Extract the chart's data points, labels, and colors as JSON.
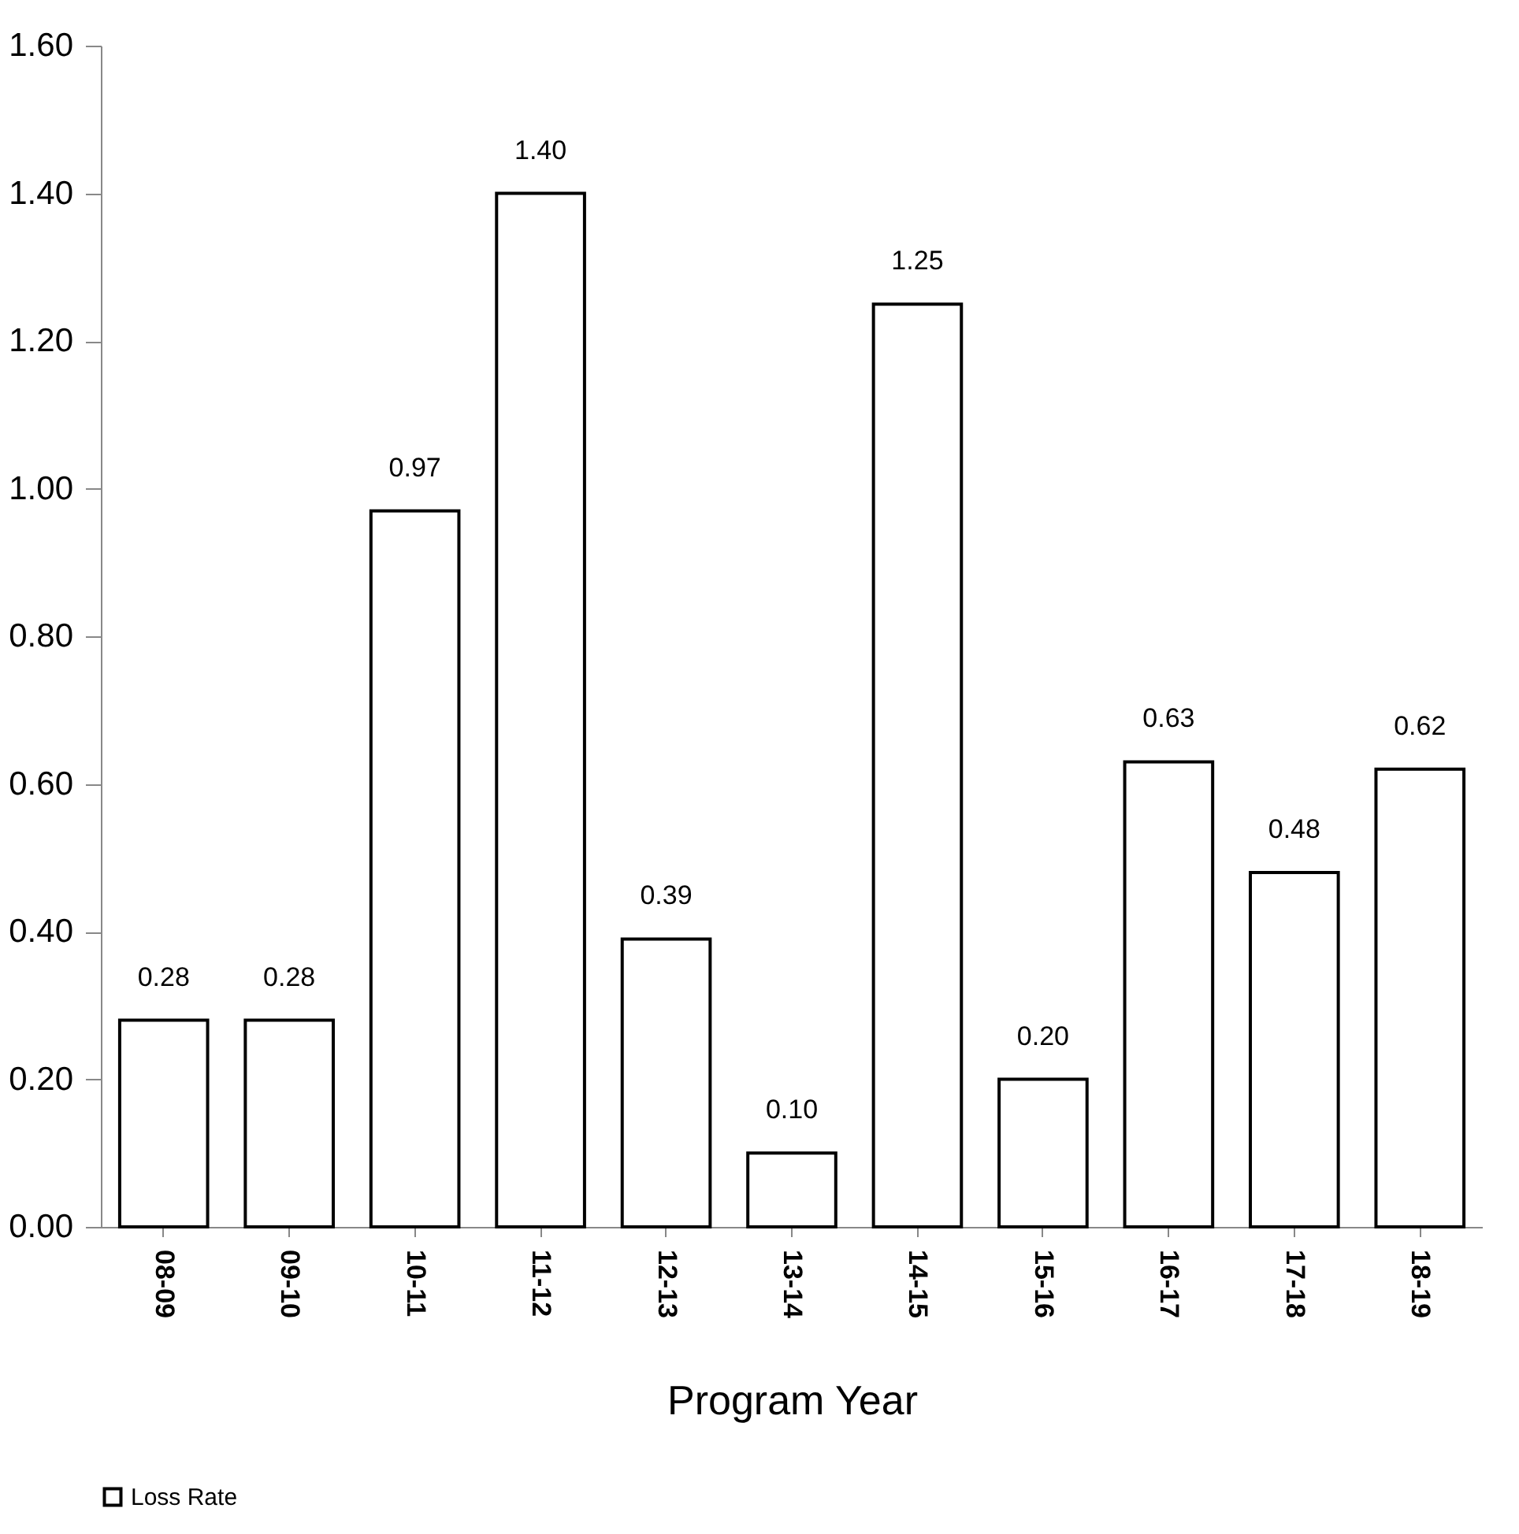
{
  "chart_data": {
    "type": "bar",
    "xlabel": "Program Year",
    "categories": [
      "08-09",
      "09-10",
      "10-11",
      "11-12",
      "12-13",
      "13-14",
      "14-15",
      "15-16",
      "16-17",
      "17-18",
      "18-19"
    ],
    "series": [
      {
        "name": "Loss Rate",
        "color": "#ffffff",
        "values": [
          0.28,
          0.28,
          0.97,
          1.4,
          0.39,
          0.1,
          1.25,
          0.2,
          0.63,
          0.48,
          0.62
        ],
        "value_labels": [
          "0.28",
          "0.28",
          "0.97",
          "1.40",
          "0.39",
          "0.10",
          "1.25",
          "0.20",
          "0.63",
          "0.48",
          "0.62"
        ]
      }
    ],
    "ylim": [
      0,
      1.6
    ],
    "yticks": [
      {
        "value": 0,
        "label": "0.00"
      },
      {
        "value": 0.2,
        "label": "0.20"
      },
      {
        "value": 0.4,
        "label": "0.40"
      },
      {
        "value": 0.6,
        "label": "0.60"
      },
      {
        "value": 0.8,
        "label": "0.80"
      },
      {
        "value": 1.0,
        "label": "1.00"
      },
      {
        "value": 1.2,
        "label": "1.20"
      },
      {
        "value": 1.4,
        "label": "1.40"
      },
      {
        "value": 1.6,
        "label": "1.60"
      }
    ],
    "grid": false,
    "legend": "bottom"
  }
}
